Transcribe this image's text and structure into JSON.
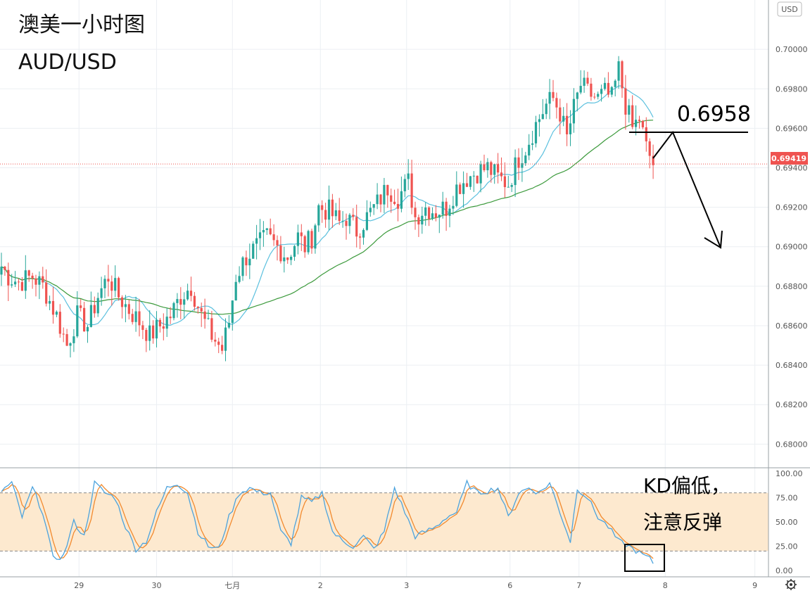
{
  "chart_data": {
    "type": "candlestick",
    "title": "澳美一小时图",
    "subtitle": "AUD/USD",
    "currency_badge": "USD",
    "colors": {
      "up": "#26a69a",
      "down": "#ef5350",
      "ma_fast": "#5bc0de",
      "ma_slow": "#3c9a3c",
      "k_line": "#4ca3dd",
      "d_line": "#f28a2e",
      "band": "#fde9cf",
      "price_line": "#ef5350"
    },
    "price_axis": {
      "ylim": [
        0.6788,
        0.7025
      ],
      "ticks": [
        "0.70000",
        "0.69800",
        "0.69600",
        "0.69400",
        "0.69200",
        "0.69000",
        "0.68800",
        "0.68600",
        "0.68400",
        "0.68200",
        "0.68000"
      ],
      "tick_values": [
        0.7,
        0.698,
        0.696,
        0.694,
        0.692,
        0.69,
        0.688,
        0.686,
        0.684,
        0.682,
        0.68
      ]
    },
    "last_price": {
      "label": "0.69419",
      "value": 0.69419
    },
    "annotation_level": {
      "label": "0.6958",
      "value": 0.6958
    },
    "x_axis": {
      "labels": [
        "29",
        "30",
        "七月",
        "2",
        "3",
        "6",
        "7",
        "8",
        "9"
      ],
      "label_bars": [
        22.5,
        45,
        67,
        92.5,
        117.5,
        147.5,
        167.5,
        192.5,
        218.5
      ]
    },
    "kd_panel": {
      "ylim": [
        0,
        100
      ],
      "ticks": [
        "100.00",
        "75.00",
        "50.00",
        "25.00",
        "0.00"
      ],
      "tick_values": [
        100,
        75,
        50,
        25,
        0
      ],
      "band": [
        20,
        80
      ],
      "annotation_line1": "KD偏低，",
      "annotation_line2": "注意反弹"
    },
    "anchors": [
      [
        0,
        0.689
      ],
      [
        2,
        0.6885
      ],
      [
        5,
        0.6882
      ],
      [
        9,
        0.6885
      ],
      [
        12,
        0.688
      ],
      [
        16,
        0.6865
      ],
      [
        19,
        0.685
      ],
      [
        22,
        0.6865
      ],
      [
        25,
        0.686
      ],
      [
        28,
        0.6875
      ],
      [
        31,
        0.6885
      ],
      [
        34,
        0.6875
      ],
      [
        37,
        0.6868
      ],
      [
        40,
        0.6862
      ],
      [
        43,
        0.6855
      ],
      [
        46,
        0.686
      ],
      [
        49,
        0.6865
      ],
      [
        52,
        0.6875
      ],
      [
        55,
        0.688
      ],
      [
        58,
        0.6865
      ],
      [
        61,
        0.6855
      ],
      [
        64,
        0.6848
      ],
      [
        66,
        0.6862
      ],
      [
        68,
        0.6885
      ],
      [
        71,
        0.6895
      ],
      [
        74,
        0.69
      ],
      [
        77,
        0.6905
      ],
      [
        80,
        0.69
      ],
      [
        83,
        0.6895
      ],
      [
        86,
        0.6905
      ],
      [
        88,
        0.69
      ],
      [
        90,
        0.6905
      ],
      [
        92,
        0.692
      ],
      [
        95,
        0.6918
      ],
      [
        98,
        0.6912
      ],
      [
        100,
        0.6915
      ],
      [
        103,
        0.6908
      ],
      [
        106,
        0.6915
      ],
      [
        109,
        0.6922
      ],
      [
        112,
        0.693
      ],
      [
        115,
        0.6925
      ],
      [
        118,
        0.6933
      ],
      [
        120,
        0.6915
      ],
      [
        123,
        0.692
      ],
      [
        126,
        0.6918
      ],
      [
        129,
        0.692
      ],
      [
        132,
        0.693
      ],
      [
        135,
        0.6935
      ],
      [
        138,
        0.6938
      ],
      [
        141,
        0.694
      ],
      [
        144,
        0.6935
      ],
      [
        147,
        0.6932
      ],
      [
        150,
        0.6945
      ],
      [
        152,
        0.695
      ],
      [
        155,
        0.6962
      ],
      [
        158,
        0.6972
      ],
      [
        160,
        0.6975
      ],
      [
        162,
        0.6968
      ],
      [
        164,
        0.6955
      ],
      [
        166,
        0.697
      ],
      [
        168,
        0.6982
      ],
      [
        170,
        0.6978
      ],
      [
        173,
        0.6975
      ],
      [
        175,
        0.6978
      ],
      [
        177,
        0.6975
      ],
      [
        179,
        0.699
      ],
      [
        181,
        0.6972
      ],
      [
        183,
        0.696
      ],
      [
        185,
        0.6965
      ],
      [
        187,
        0.695
      ],
      [
        189,
        0.6942
      ]
    ],
    "kd_k_anchors": [
      [
        0,
        82
      ],
      [
        3,
        90
      ],
      [
        6,
        55
      ],
      [
        9,
        85
      ],
      [
        12,
        60
      ],
      [
        15,
        12
      ],
      [
        18,
        15
      ],
      [
        21,
        50
      ],
      [
        24,
        35
      ],
      [
        27,
        90
      ],
      [
        30,
        80
      ],
      [
        33,
        75
      ],
      [
        36,
        45
      ],
      [
        39,
        22
      ],
      [
        42,
        30
      ],
      [
        45,
        60
      ],
      [
        48,
        85
      ],
      [
        51,
        90
      ],
      [
        54,
        80
      ],
      [
        57,
        40
      ],
      [
        60,
        25
      ],
      [
        63,
        22
      ],
      [
        66,
        55
      ],
      [
        69,
        80
      ],
      [
        72,
        85
      ],
      [
        75,
        80
      ],
      [
        78,
        80
      ],
      [
        81,
        40
      ],
      [
        84,
        28
      ],
      [
        87,
        75
      ],
      [
        90,
        70
      ],
      [
        93,
        80
      ],
      [
        96,
        40
      ],
      [
        99,
        30
      ],
      [
        102,
        25
      ],
      [
        105,
        35
      ],
      [
        108,
        22
      ],
      [
        111,
        40
      ],
      [
        114,
        85
      ],
      [
        117,
        60
      ],
      [
        120,
        35
      ],
      [
        123,
        40
      ],
      [
        126,
        45
      ],
      [
        129,
        55
      ],
      [
        132,
        60
      ],
      [
        135,
        90
      ],
      [
        138,
        80
      ],
      [
        141,
        82
      ],
      [
        144,
        85
      ],
      [
        147,
        55
      ],
      [
        150,
        80
      ],
      [
        153,
        85
      ],
      [
        156,
        80
      ],
      [
        159,
        90
      ],
      [
        162,
        60
      ],
      [
        165,
        30
      ],
      [
        167,
        85
      ],
      [
        170,
        75
      ],
      [
        173,
        55
      ],
      [
        176,
        45
      ],
      [
        179,
        30
      ],
      [
        182,
        25
      ],
      [
        185,
        18
      ],
      [
        188,
        12
      ],
      [
        189,
        8
      ]
    ]
  }
}
